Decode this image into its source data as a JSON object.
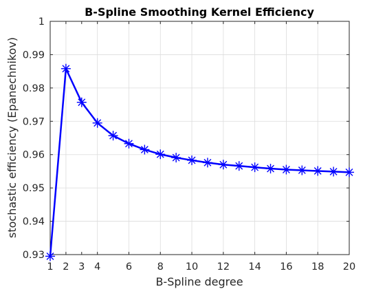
{
  "chart_data": {
    "type": "line",
    "title": "B-Spline Smoothing Kernel Efficiency",
    "xlabel": "B-Spline degree",
    "ylabel": "stochastic efficiency (Epanechnikov)",
    "xlim": [
      1,
      20
    ],
    "ylim": [
      0.93,
      1.0
    ],
    "xticks": [
      1,
      2,
      3,
      4,
      6,
      8,
      10,
      12,
      14,
      16,
      18,
      20
    ],
    "yticks": [
      0.93,
      0.94,
      0.95,
      0.96,
      0.97,
      0.98,
      0.99,
      1.0
    ],
    "ytick_labels": [
      "0.93",
      "0.94",
      "0.95",
      "0.96",
      "0.97",
      "0.98",
      "0.99",
      "1"
    ],
    "xgrid": [
      1,
      2,
      4,
      6,
      8,
      10,
      12,
      14,
      16,
      18,
      20
    ],
    "grid": true,
    "marker": "asterisk",
    "color": "#0000ff",
    "x": [
      1,
      2,
      3,
      4,
      5,
      6,
      7,
      8,
      9,
      10,
      11,
      12,
      13,
      14,
      15,
      16,
      17,
      18,
      19,
      20
    ],
    "values": [
      0.9295,
      0.9858,
      0.9757,
      0.9695,
      0.9657,
      0.9633,
      0.9615,
      0.9601,
      0.9591,
      0.9583,
      0.9576,
      0.957,
      0.9566,
      0.9562,
      0.9558,
      0.9555,
      0.9553,
      0.9551,
      0.9549,
      0.9547
    ]
  }
}
